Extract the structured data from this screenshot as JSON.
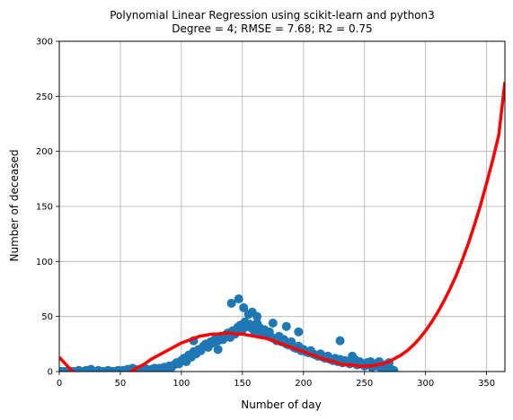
{
  "chart_data": {
    "type": "scatter",
    "title": "Polynomial Linear Regression using scikit-learn and python3",
    "subtitle": "Degree = 4; RMSE = 7.68; R2 = 0.75",
    "xlabel": "Number of day",
    "ylabel": "Number of deceased",
    "xlim": [
      0,
      365
    ],
    "ylim": [
      0,
      300
    ],
    "x_ticks": [
      0,
      50,
      100,
      150,
      200,
      250,
      300,
      350
    ],
    "y_ticks": [
      0,
      50,
      100,
      150,
      200,
      250,
      300
    ],
    "grid": true,
    "colors": {
      "scatter": "#1f77b4",
      "fit": "#ff0000",
      "grid": "#b0b0b0"
    },
    "scatter": {
      "x": [
        0,
        2,
        4,
        6,
        8,
        10,
        12,
        14,
        16,
        18,
        20,
        22,
        24,
        26,
        28,
        30,
        32,
        34,
        36,
        38,
        40,
        42,
        44,
        46,
        48,
        50,
        52,
        54,
        56,
        58,
        60,
        62,
        64,
        66,
        68,
        70,
        72,
        74,
        76,
        78,
        80,
        82,
        84,
        86,
        88,
        90,
        92,
        94,
        96,
        98,
        100,
        102,
        104,
        106,
        108,
        110,
        112,
        114,
        116,
        118,
        120,
        122,
        124,
        126,
        128,
        130,
        132,
        134,
        136,
        138,
        140,
        142,
        144,
        146,
        148,
        150,
        152,
        154,
        156,
        158,
        160,
        162,
        164,
        166,
        168,
        170,
        172,
        174,
        176,
        178,
        180,
        182,
        184,
        186,
        188,
        190,
        192,
        194,
        196,
        198,
        200,
        202,
        204,
        206,
        208,
        210,
        212,
        214,
        216,
        218,
        220,
        222,
        224,
        226,
        228,
        230,
        232,
        234,
        236,
        238,
        240,
        242,
        244,
        246,
        248,
        250,
        252,
        254,
        256,
        258,
        260,
        262,
        264,
        266,
        268,
        270,
        272,
        274,
        141,
        147,
        151,
        155,
        158,
        162,
        175,
        186,
        196,
        110,
        130,
        230,
        240,
        255
      ],
      "y": [
        0,
        0,
        0,
        0,
        0,
        0,
        0,
        0,
        1,
        0,
        0,
        1,
        0,
        2,
        0,
        0,
        1,
        0,
        0,
        0,
        1,
        0,
        0,
        0,
        1,
        0,
        1,
        0,
        2,
        1,
        3,
        2,
        1,
        2,
        0,
        3,
        2,
        1,
        2,
        3,
        2,
        3,
        2,
        4,
        3,
        5,
        4,
        6,
        8,
        7,
        10,
        12,
        9,
        15,
        13,
        18,
        16,
        20,
        19,
        23,
        25,
        22,
        27,
        26,
        30,
        28,
        32,
        29,
        33,
        35,
        31,
        37,
        34,
        40,
        42,
        38,
        45,
        41,
        43,
        39,
        36,
        44,
        40,
        35,
        38,
        33,
        36,
        31,
        30,
        28,
        32,
        27,
        29,
        25,
        24,
        27,
        22,
        21,
        23,
        19,
        20,
        18,
        17,
        19,
        16,
        15,
        14,
        16,
        13,
        12,
        14,
        11,
        10,
        12,
        9,
        11,
        8,
        10,
        9,
        7,
        8,
        11,
        6,
        9,
        7,
        5,
        8,
        6,
        4,
        7,
        5,
        9,
        3,
        6,
        4,
        8,
        2,
        1,
        62,
        66,
        58,
        52,
        54,
        50,
        44,
        41,
        36,
        28,
        20,
        28,
        14,
        9
      ]
    },
    "fit": {
      "x": [
        0,
        5,
        10,
        15,
        20,
        25,
        30,
        35,
        40,
        45,
        50,
        55,
        60,
        65,
        70,
        75,
        80,
        85,
        90,
        95,
        100,
        105,
        110,
        115,
        120,
        125,
        130,
        135,
        140,
        145,
        150,
        155,
        160,
        165,
        170,
        175,
        180,
        185,
        190,
        195,
        200,
        205,
        210,
        215,
        220,
        225,
        230,
        235,
        240,
        245,
        250,
        255,
        260,
        265,
        270,
        275,
        280,
        285,
        290,
        295,
        300,
        305,
        310,
        315,
        320,
        325,
        330,
        335,
        340,
        345,
        350,
        355,
        360,
        365
      ],
      "y": [
        13,
        7,
        1,
        -3,
        -7,
        -9,
        -10,
        -10,
        -9,
        -7,
        -5,
        -2,
        1,
        4,
        7,
        11,
        14,
        17,
        20,
        23,
        26,
        28,
        30,
        32,
        33,
        34,
        34,
        35,
        35,
        34,
        34,
        33,
        32,
        31,
        30,
        28,
        26,
        24,
        22,
        20,
        18,
        16,
        14,
        12,
        10,
        9,
        7,
        6,
        6,
        5,
        5,
        5,
        6,
        7,
        9,
        12,
        15,
        19,
        24,
        30,
        37,
        45,
        54,
        64,
        75,
        87,
        101,
        116,
        133,
        151,
        171,
        192,
        215,
        263
      ]
    }
  }
}
